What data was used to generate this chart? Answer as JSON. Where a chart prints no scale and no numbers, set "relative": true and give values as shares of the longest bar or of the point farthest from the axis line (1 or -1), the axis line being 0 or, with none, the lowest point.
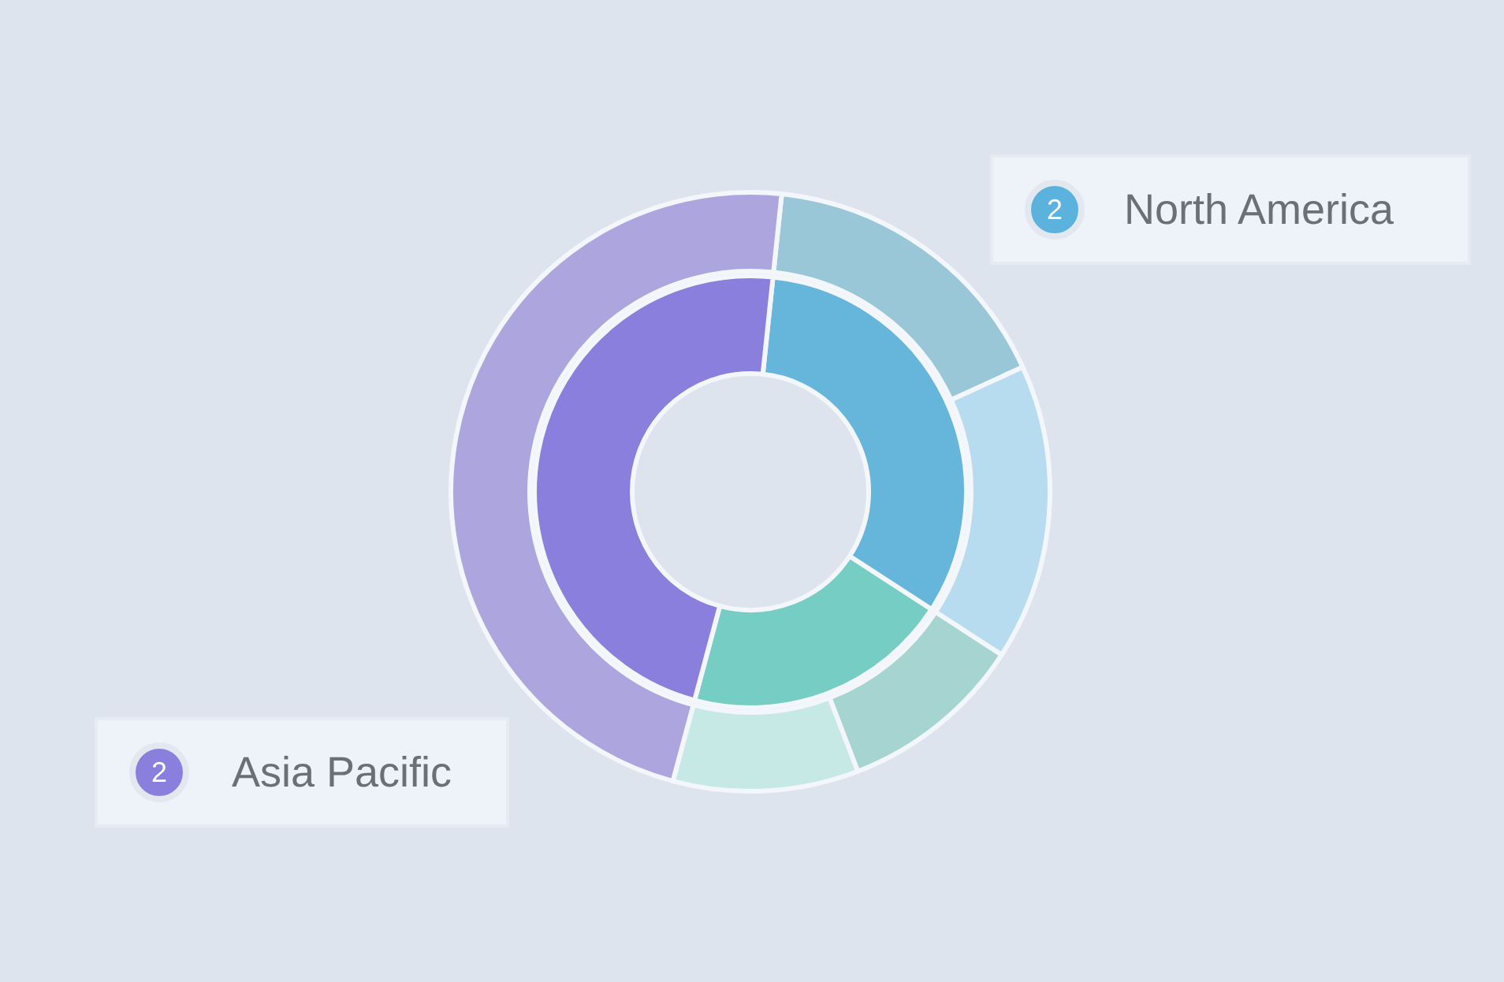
{
  "chart_data": {
    "type": "donut",
    "relative": true,
    "legend": false,
    "series": [
      {
        "values": [
          32.5,
          20,
          47.5
        ],
        "colors": [
          "#66b6dc",
          "#76cdc3",
          "#8a7fdc"
        ]
      },
      {
        "values": [
          16.5,
          16,
          10,
          10,
          47.5
        ],
        "colors": [
          "#9ac7d8",
          "#b8dcef",
          "#a6d4d0",
          "#c7e9e6",
          "#ada6de"
        ]
      }
    ],
    "annotations": [
      "2",
      "North America",
      "2",
      "Asia Pacific"
    ]
  }
}
